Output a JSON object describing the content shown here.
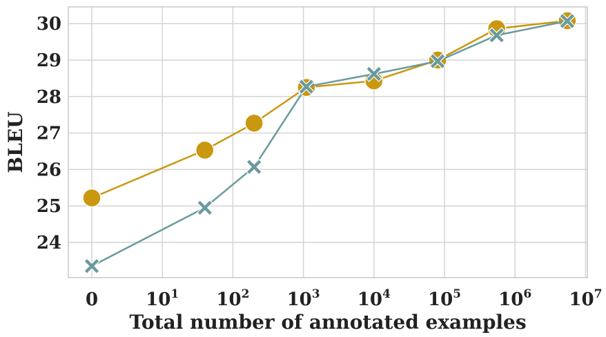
{
  "chart_data": {
    "type": "line",
    "xlabel": "Total number of annotated examples",
    "ylabel": "BLEU",
    "x_tick_labels": [
      {
        "base": "0",
        "exp": ""
      },
      {
        "base": "10",
        "exp": "1"
      },
      {
        "base": "10",
        "exp": "2"
      },
      {
        "base": "10",
        "exp": "3"
      },
      {
        "base": "10",
        "exp": "4"
      },
      {
        "base": "10",
        "exp": "5"
      },
      {
        "base": "10",
        "exp": "6"
      },
      {
        "base": "10",
        "exp": "7"
      }
    ],
    "x_scale": "symlog",
    "x_range": [
      0,
      10000000
    ],
    "y_ticks": [
      24,
      25,
      26,
      27,
      28,
      29,
      30
    ],
    "ylim": [
      23.0,
      30.4
    ],
    "grid": true,
    "series": [
      {
        "marker": "circle",
        "color": "#C9980F",
        "x": [
          0,
          40,
          200,
          1100,
          10000,
          80000,
          550000,
          5500000
        ],
        "y": [
          25.22,
          26.53,
          27.27,
          28.25,
          28.43,
          29.0,
          29.86,
          30.08
        ]
      },
      {
        "marker": "x",
        "color": "#6A9A9E",
        "x": [
          0,
          40,
          200,
          1100,
          10000,
          80000,
          550000,
          5500000
        ],
        "y": [
          23.35,
          24.95,
          26.07,
          28.27,
          28.62,
          28.97,
          29.68,
          30.07
        ]
      }
    ]
  }
}
